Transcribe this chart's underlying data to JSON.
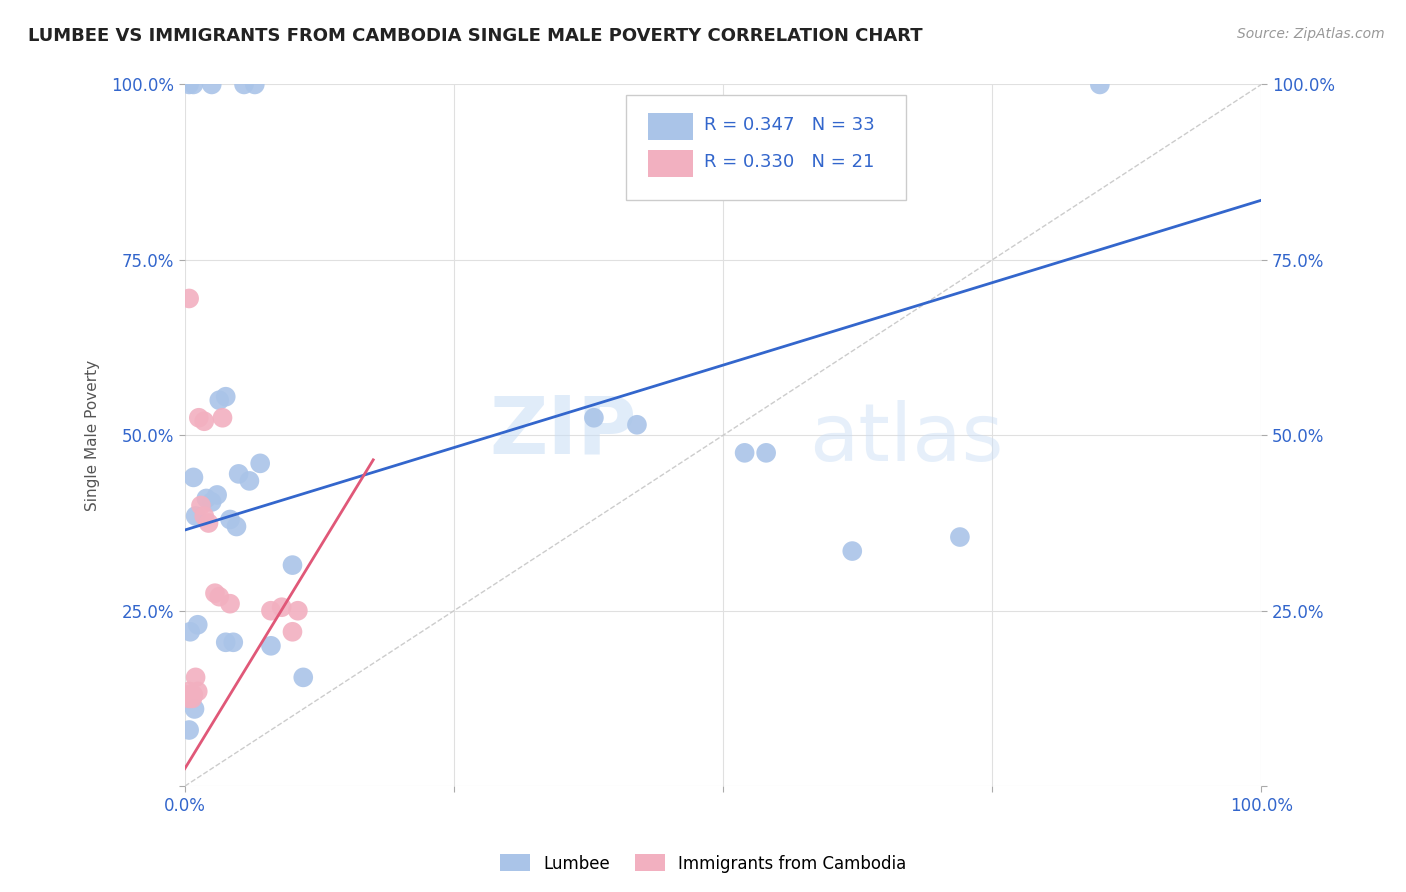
{
  "title": "LUMBEE VS IMMIGRANTS FROM CAMBODIA SINGLE MALE POVERTY CORRELATION CHART",
  "source": "Source: ZipAtlas.com",
  "ylabel": "Single Male Poverty",
  "xlim": [
    0,
    1
  ],
  "ylim": [
    0,
    1
  ],
  "ytick_positions": [
    0.0,
    0.25,
    0.5,
    0.75,
    1.0
  ],
  "xtick_positions": [
    0.0,
    0.25,
    0.5,
    0.75,
    1.0
  ],
  "background_color": "#ffffff",
  "grid_color": "#e0e0e0",
  "lumbee_color": "#aac4e8",
  "cambodia_color": "#f2b0c0",
  "lumbee_line_color": "#3366cc",
  "cambodia_line_color": "#e05878",
  "R_lumbee": 0.347,
  "N_lumbee": 33,
  "R_cambodia": 0.33,
  "N_cambodia": 21,
  "lumbee_label": "Lumbee",
  "cambodia_label": "Immigrants from Cambodia",
  "watermark_zip": "ZIP",
  "watermark_atlas": "atlas",
  "lumbee_x": [
    0.005,
    0.012,
    0.038,
    0.042,
    0.048,
    0.008,
    0.01,
    0.02,
    0.025,
    0.03,
    0.032,
    0.038,
    0.05,
    0.06,
    0.07,
    0.08,
    0.045,
    0.1,
    0.11,
    0.38,
    0.42,
    0.52,
    0.54,
    0.62,
    0.72,
    0.004,
    0.008,
    0.025,
    0.055,
    0.065,
    0.85,
    0.004,
    0.009
  ],
  "lumbee_y": [
    0.22,
    0.23,
    0.205,
    0.38,
    0.37,
    0.44,
    0.385,
    0.41,
    0.405,
    0.415,
    0.55,
    0.555,
    0.445,
    0.435,
    0.46,
    0.2,
    0.205,
    0.315,
    0.155,
    0.525,
    0.515,
    0.475,
    0.475,
    0.335,
    0.355,
    1.0,
    1.0,
    1.0,
    1.0,
    1.0,
    1.0,
    0.08,
    0.11
  ],
  "cambodia_x": [
    0.003,
    0.004,
    0.004,
    0.007,
    0.008,
    0.01,
    0.012,
    0.015,
    0.018,
    0.022,
    0.028,
    0.032,
    0.042,
    0.08,
    0.09,
    0.1,
    0.105,
    0.004,
    0.013,
    0.018,
    0.035
  ],
  "cambodia_y": [
    0.13,
    0.125,
    0.135,
    0.125,
    0.13,
    0.155,
    0.135,
    0.4,
    0.385,
    0.375,
    0.275,
    0.27,
    0.26,
    0.25,
    0.255,
    0.22,
    0.25,
    0.695,
    0.525,
    0.52,
    0.525
  ],
  "lumbee_line_x0": 0.0,
  "lumbee_line_x1": 1.0,
  "lumbee_line_y0": 0.365,
  "lumbee_line_y1": 0.835,
  "cambodia_line_x0": 0.0,
  "cambodia_line_x1": 0.175,
  "cambodia_line_y0": 0.025,
  "cambodia_line_y1": 0.465
}
